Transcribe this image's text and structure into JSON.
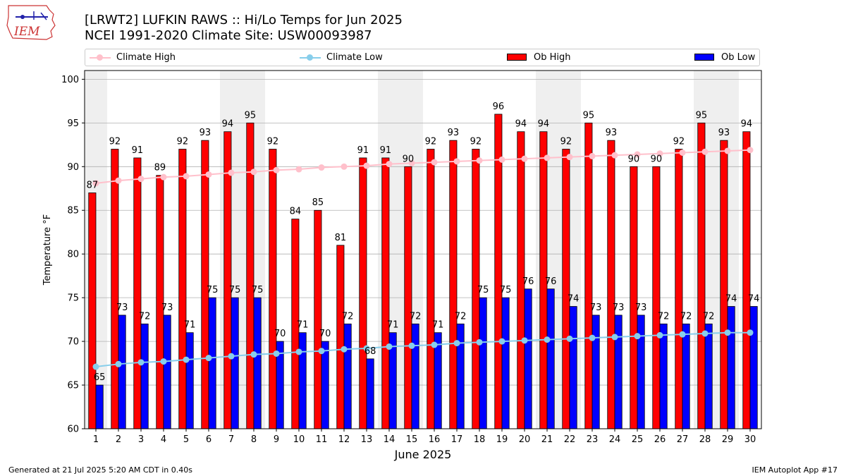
{
  "header": {
    "title_line1": "[LRWT2] LUFKIN RAWS :: Hi/Lo Temps for Jun 2025",
    "title_line2": "NCEI 1991-2020 Climate Site: USW00093987"
  },
  "logo": {
    "text": "IEM"
  },
  "legend": {
    "items": [
      {
        "label": "Climate High",
        "kind": "line",
        "color": "#ffc0cb"
      },
      {
        "label": "Climate Low",
        "kind": "line",
        "color": "#87ceeb"
      },
      {
        "label": "Ob High",
        "kind": "bar",
        "color": "#ff0000"
      },
      {
        "label": "Ob Low",
        "kind": "bar",
        "color": "#0000ff"
      }
    ]
  },
  "footer": {
    "left": "Generated at 21 Jul 2025 5:20 AM CDT in 0.40s",
    "right": "IEM Autoplot App #17"
  },
  "chart_data": {
    "type": "bar",
    "xlabel": "June 2025",
    "ylabel": "Temperature °F",
    "ylim": [
      60,
      101
    ],
    "yticks": [
      60,
      65,
      70,
      75,
      80,
      85,
      90,
      95,
      100
    ],
    "grid": true,
    "legend_position": "top",
    "categories": [
      "1",
      "2",
      "3",
      "4",
      "5",
      "6",
      "7",
      "8",
      "9",
      "10",
      "11",
      "12",
      "13",
      "14",
      "15",
      "16",
      "17",
      "18",
      "19",
      "20",
      "21",
      "22",
      "23",
      "24",
      "25",
      "26",
      "27",
      "28",
      "29",
      "30"
    ],
    "weekend_shading_days": [
      1,
      7,
      8,
      14,
      15,
      21,
      22,
      28,
      29
    ],
    "series": [
      {
        "name": "Ob High",
        "kind": "bar",
        "color": "#ff0000",
        "values": [
          87,
          92,
          91,
          89,
          92,
          93,
          94,
          95,
          92,
          84,
          85,
          81,
          91,
          91,
          90,
          92,
          93,
          92,
          96,
          94,
          94,
          92,
          95,
          93,
          90,
          90,
          92,
          95,
          93,
          94
        ]
      },
      {
        "name": "Ob Low",
        "kind": "bar",
        "color": "#0000ff",
        "values": [
          65,
          73,
          72,
          73,
          71,
          75,
          75,
          75,
          70,
          71,
          70,
          72,
          68,
          71,
          72,
          71,
          72,
          75,
          75,
          76,
          76,
          74,
          73,
          73,
          73,
          72,
          72,
          72,
          74,
          74
        ]
      },
      {
        "name": "Climate High",
        "kind": "line",
        "color": "#ffc0cb",
        "values": [
          88.1,
          88.4,
          88.6,
          88.8,
          88.9,
          89.1,
          89.3,
          89.4,
          89.6,
          89.7,
          89.9,
          90.0,
          90.1,
          90.3,
          90.4,
          90.5,
          90.6,
          90.7,
          90.8,
          90.9,
          91.0,
          91.1,
          91.2,
          91.3,
          91.4,
          91.5,
          91.6,
          91.7,
          91.8,
          91.9
        ]
      },
      {
        "name": "Climate Low",
        "kind": "line",
        "color": "#87ceeb",
        "values": [
          67.1,
          67.4,
          67.6,
          67.7,
          67.9,
          68.1,
          68.3,
          68.5,
          68.6,
          68.8,
          68.9,
          69.1,
          69.2,
          69.4,
          69.5,
          69.6,
          69.8,
          69.9,
          70.0,
          70.1,
          70.2,
          70.3,
          70.4,
          70.5,
          70.6,
          70.7,
          70.8,
          70.9,
          71.0,
          71.0
        ]
      }
    ]
  }
}
